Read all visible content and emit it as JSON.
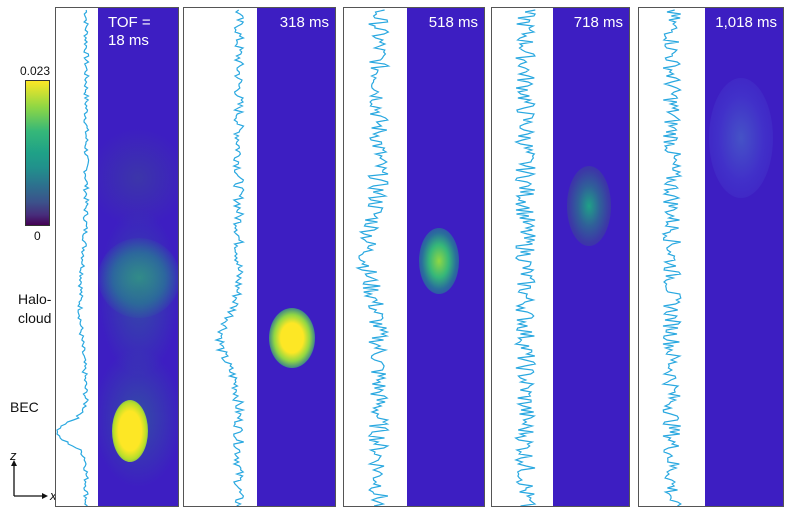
{
  "figure": {
    "colorbar": {
      "max_label": "0.023",
      "min_label": "0",
      "colormap": "viridis"
    },
    "annotations": {
      "halo_line1": "Halo-",
      "halo_line2": "cloud",
      "bec": "BEC"
    },
    "axes": {
      "vertical": "z",
      "horizontal": "x"
    },
    "panels": [
      {
        "tof_label": "TOF =\n18 ms"
      },
      {
        "tof_label": "318 ms"
      },
      {
        "tof_label": "518 ms"
      },
      {
        "tof_label": "718 ms"
      },
      {
        "tof_label": "1,018 ms"
      }
    ],
    "colors": {
      "background": "#3d1ec2",
      "trace": "#29a8e0",
      "peak": "#fde725",
      "mid": "#35b779"
    }
  }
}
